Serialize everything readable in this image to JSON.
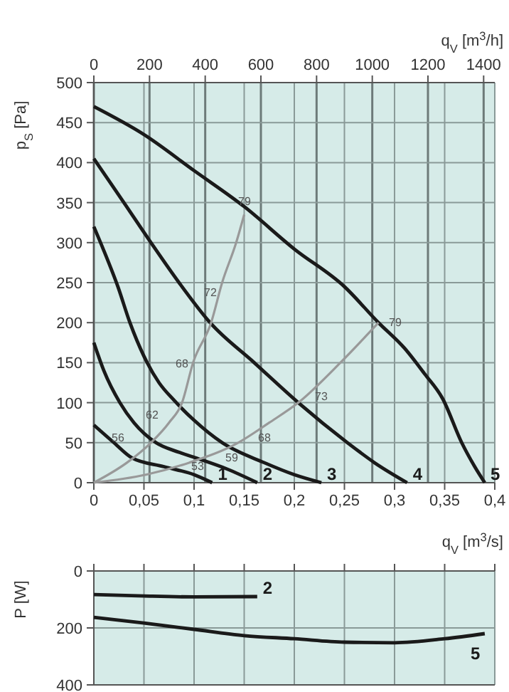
{
  "chart_data": [
    {
      "type": "line",
      "x2label": "q$_{V}$ [m$^{3}$/h]",
      "xlabel": "q$_{V}$ [m$^{3}$/s]",
      "ylabel": "p$_{S}$ [Pa]",
      "xlim": [
        0,
        0.4
      ],
      "xticks": [
        0,
        {
          "value": 0.05,
          "label": "0,05"
        },
        {
          "value": 0.1,
          "label": "0,1"
        },
        {
          "value": 0.15,
          "label": "0,15"
        },
        {
          "value": 0.2,
          "label": "0,2"
        },
        {
          "value": 0.25,
          "label": "0,25"
        },
        {
          "value": 0.3,
          "label": "0,3"
        },
        {
          "value": 0.35,
          "label": "0,35"
        },
        {
          "value": 0.4,
          "label": "0,4"
        }
      ],
      "x2lim": [
        0,
        1440
      ],
      "x2ticks": [
        0,
        200,
        400,
        600,
        800,
        1000,
        1200,
        1400
      ],
      "ylim": [
        0,
        500
      ],
      "yticks": [
        0,
        50,
        100,
        150,
        200,
        250,
        300,
        350,
        400,
        450,
        500
      ],
      "grid": true,
      "line_style": "solid",
      "series": [
        {
          "name": "1",
          "color": "#1a1a1a",
          "x": [
            0,
            0.02,
            0.038,
            0.07,
            0.1,
            0.118
          ],
          "values": [
            72,
            50,
            31,
            20,
            10,
            0
          ]
        },
        {
          "name": "2",
          "color": "#1a1a1a",
          "x": [
            0,
            0.01,
            0.026,
            0.04,
            0.062,
            0.085,
            0.104,
            0.133,
            0.163
          ],
          "values": [
            175,
            140,
            100,
            75,
            50,
            38,
            30,
            17,
            0
          ]
        },
        {
          "name": "3",
          "color": "#1a1a1a",
          "x": [
            0,
            0.01,
            0.024,
            0.036,
            0.05,
            0.065,
            0.08,
            0.1,
            0.128,
            0.17,
            0.2,
            0.227
          ],
          "values": [
            320,
            290,
            245,
            200,
            158,
            125,
            103,
            78,
            50,
            25,
            10,
            0
          ]
        },
        {
          "name": "4",
          "color": "#1a1a1a",
          "x": [
            0,
            0.03,
            0.057,
            0.085,
            0.116,
            0.16,
            0.204,
            0.253,
            0.28,
            0.3125
          ],
          "values": [
            405,
            350,
            300,
            250,
            200,
            150,
            100,
            50,
            25,
            0
          ]
        },
        {
          "name": "5",
          "color": "#1a1a1a",
          "x": [
            0,
            0.05,
            0.1,
            0.15,
            0.2,
            0.25,
            0.284,
            0.31,
            0.33,
            0.348,
            0.367,
            0.38,
            0.39
          ],
          "values": [
            470,
            435,
            390,
            345,
            292,
            245,
            200,
            168,
            136,
            105,
            50,
            20,
            0
          ]
        },
        {
          "color": "#999999",
          "x": [
            0,
            0.033,
            0.057,
            0.075,
            0.088,
            0.099,
            0.117,
            0.128,
            0.142,
            0.15
          ],
          "values": [
            0,
            25,
            50,
            75,
            100,
            150,
            200,
            250,
            300,
            335
          ]
        },
        {
          "color": "#999999",
          "x": [
            0,
            0.052,
            0.095,
            0.144,
            0.175,
            0.204,
            0.246,
            0.284
          ],
          "values": [
            0,
            10,
            25,
            50,
            75,
            100,
            150,
            200
          ]
        }
      ],
      "annotations": [
        "79",
        "72",
        "68",
        "62",
        "56",
        "53",
        "59",
        "68",
        "73",
        "79"
      ]
    },
    {
      "type": "line",
      "ylabel": "P [W]",
      "xlim": [
        0,
        0.4
      ],
      "xticks": [
        0,
        0.05,
        0.1,
        0.15,
        0.2,
        0.25,
        0.3,
        0.35,
        0.4
      ],
      "ylim": [
        400,
        0
      ],
      "yticks": [
        0,
        200,
        400
      ],
      "tick_labels": "y",
      "grid": true,
      "line_style": "solid",
      "series": [
        {
          "name": "2",
          "color": "#1a1a1a",
          "x": [
            0,
            0.05,
            0.1,
            0.163
          ],
          "values": [
            83,
            88,
            91,
            90
          ]
        },
        {
          "name": "5",
          "color": "#1a1a1a",
          "x": [
            0,
            0.05,
            0.1,
            0.15,
            0.2,
            0.25,
            0.3,
            0.35,
            0.39
          ],
          "values": [
            163,
            183,
            205,
            227,
            238,
            250,
            252,
            238,
            220
          ]
        }
      ]
    }
  ]
}
